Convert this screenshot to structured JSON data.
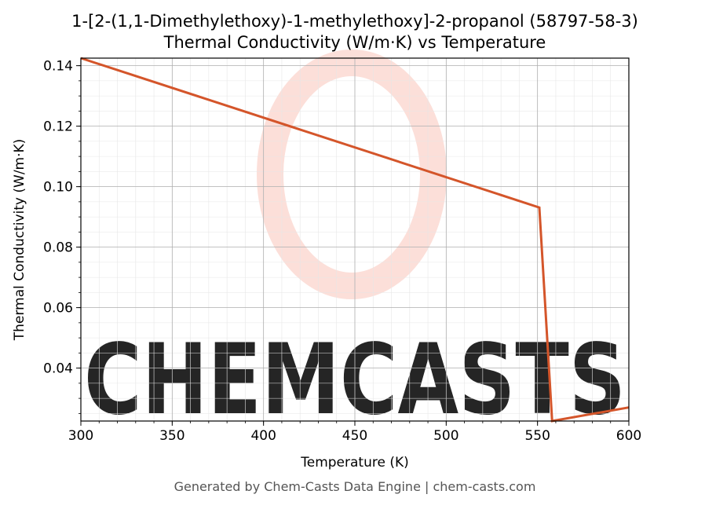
{
  "chart_data": {
    "type": "line",
    "title": "1-[2-(1,1-Dimethylethoxy)-1-methylethoxy]-2-propanol (58797-58-3)",
    "subtitle": "Thermal Conductivity (W/m·K) vs Temperature",
    "xlabel": "Temperature (K)",
    "ylabel": "Thermal Conductivity (W/m·K)",
    "xlim": [
      300,
      600
    ],
    "ylim": [
      0.0225,
      0.1425
    ],
    "xticks": [
      {
        "value": 300,
        "label": "300"
      },
      {
        "value": 350,
        "label": "350"
      },
      {
        "value": 400,
        "label": "400"
      },
      {
        "value": 450,
        "label": "450"
      },
      {
        "value": 500,
        "label": "500"
      },
      {
        "value": 550,
        "label": "550"
      },
      {
        "value": 600,
        "label": "600"
      }
    ],
    "yticks": [
      {
        "value": 0.04,
        "label": "0.04"
      },
      {
        "value": 0.06,
        "label": "0.06"
      },
      {
        "value": 0.08,
        "label": "0.08"
      },
      {
        "value": 0.1,
        "label": "0.10"
      },
      {
        "value": 0.12,
        "label": "0.12"
      },
      {
        "value": 0.14,
        "label": "0.14"
      }
    ],
    "grid": true,
    "series": [
      {
        "color": "#d4552a",
        "points": [
          {
            "x": 300,
            "y": 0.1425
          },
          {
            "x": 551,
            "y": 0.0931
          },
          {
            "x": 558,
            "y": 0.0225
          },
          {
            "x": 600,
            "y": 0.027
          }
        ]
      }
    ]
  },
  "watermark": {
    "text": "CHEMCASTS",
    "color": "#fcd9d2"
  },
  "footer": {
    "text": "Generated by Chem-Casts Data Engine | chem-casts.com"
  }
}
